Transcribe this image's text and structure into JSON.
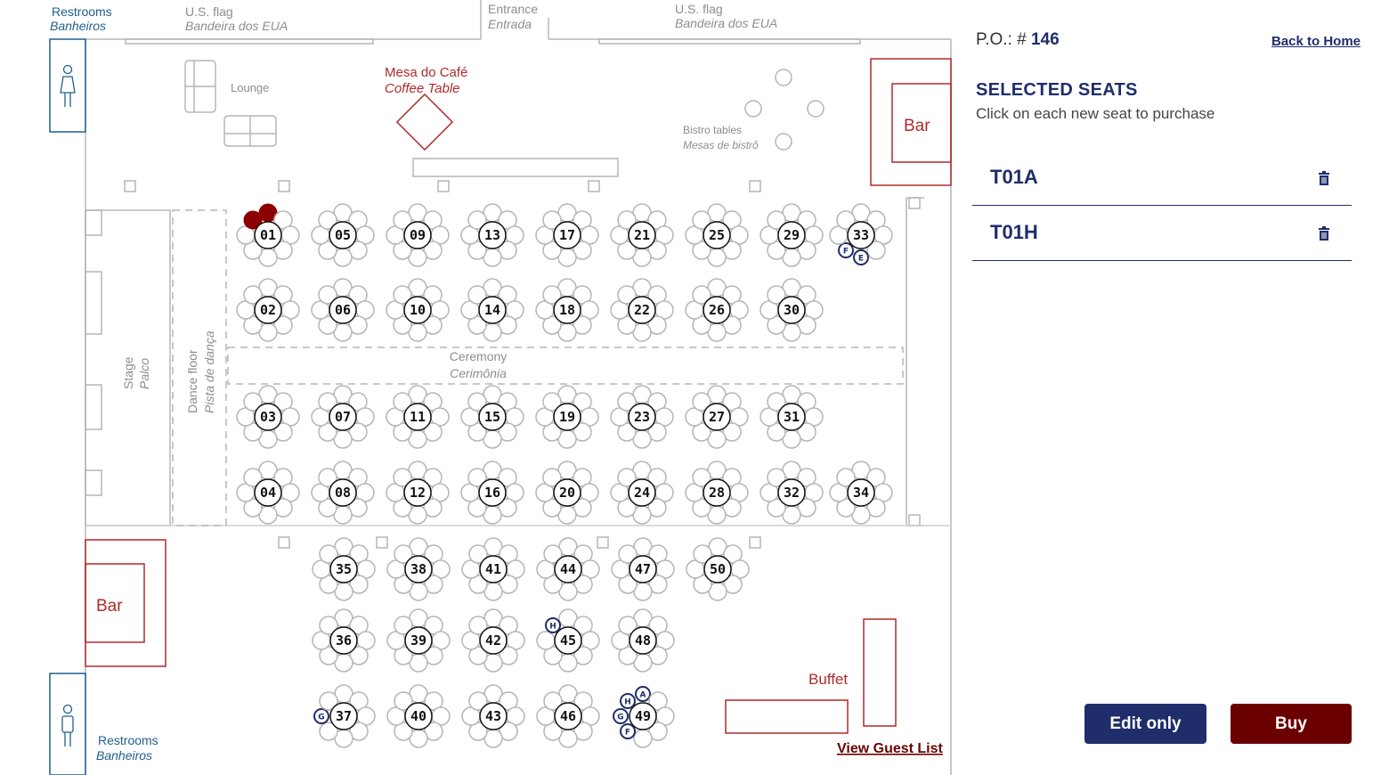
{
  "venue": {
    "restrooms_top": {
      "en": "Restrooms",
      "pt": "Banheiros"
    },
    "restrooms_bottom": {
      "en": "Restrooms",
      "pt": "Banheiros"
    },
    "flag_left": {
      "en": "U.S. flag",
      "pt": "Bandeira dos EUA"
    },
    "flag_right": {
      "en": "U.S. flag",
      "pt": "Bandeira dos EUA"
    },
    "entrance": {
      "en": "Entrance",
      "pt": "Entrada"
    },
    "lounge": "Lounge",
    "coffee_table": {
      "pt": "Mesa do Café",
      "en": "Coffee Table"
    },
    "bistro": {
      "en": "Bistro tables",
      "pt": "Mesas de bistrô"
    },
    "bar_right": "Bar",
    "bar_left": "Bar",
    "stage": {
      "en": "Stage",
      "pt": "Palco"
    },
    "dance_floor": {
      "en": "Dance floor",
      "pt": "Pista de dança"
    },
    "ceremony": {
      "en": "Ceremony",
      "pt": "Cerimônia"
    },
    "buffet": "Buffet",
    "view_guest_list": "View Guest List"
  },
  "tables": [
    "01",
    "02",
    "03",
    "04",
    "05",
    "06",
    "07",
    "08",
    "09",
    "10",
    "11",
    "12",
    "13",
    "14",
    "15",
    "16",
    "17",
    "18",
    "19",
    "20",
    "21",
    "22",
    "23",
    "24",
    "25",
    "26",
    "27",
    "28",
    "29",
    "30",
    "31",
    "32",
    "33",
    "34",
    "35",
    "36",
    "37",
    "38",
    "39",
    "40",
    "41",
    "42",
    "43",
    "44",
    "45",
    "46",
    "47",
    "48",
    "49",
    "50"
  ],
  "seat_states": {
    "selected": [
      {
        "table": "01",
        "seat": "A"
      },
      {
        "table": "01",
        "seat": "H"
      }
    ],
    "reserved": [
      {
        "table": "33",
        "seat": "F"
      },
      {
        "table": "33",
        "seat": "E"
      },
      {
        "table": "45",
        "seat": "H"
      },
      {
        "table": "37",
        "seat": "G"
      },
      {
        "table": "49",
        "seat": "A"
      },
      {
        "table": "49",
        "seat": "H"
      },
      {
        "table": "49",
        "seat": "G"
      },
      {
        "table": "49",
        "seat": "F"
      }
    ]
  },
  "panel": {
    "po_label": "P.O.: #",
    "po_number": "146",
    "back_home": "Back to Home",
    "selected_title": "SELECTED SEATS",
    "selected_subtitle": "Click on each new seat to purchase",
    "selected_seats": [
      "T01A",
      "T01H"
    ],
    "edit_only": "Edit only",
    "buy": "Buy"
  },
  "colors": {
    "navy": "#1f2d6b",
    "maroon": "#6b0000",
    "selected_seat": "#8b0000",
    "wall_red": "#b02a2a",
    "restroom_blue": "#1f5f8f"
  }
}
